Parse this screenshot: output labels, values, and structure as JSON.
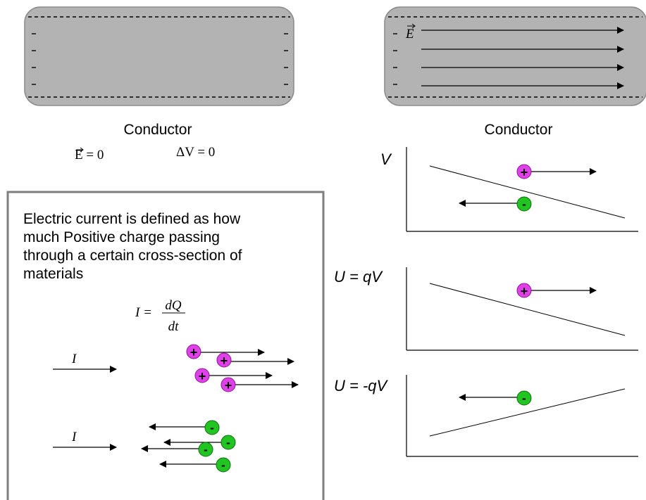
{
  "left_conductor": {
    "label": "Conductor",
    "field_eq": "E = 0",
    "potential_eq": "ΔV = 0"
  },
  "right_conductor": {
    "label": "Conductor",
    "field_label": "E"
  },
  "current_box": {
    "text_lines": [
      "Electric current is defined as how",
      "much Positive charge passing",
      "through a certain cross-section of",
      "materials"
    ],
    "formula_lhs": "I =",
    "formula_num": "dQ",
    "formula_den": "dt",
    "current_label_top": "I",
    "current_label_bottom": "I"
  },
  "graphs": {
    "v_label": "V",
    "u_pos_label": "U = qV",
    "u_neg_label": "U = -qV"
  },
  "charges": {
    "positive": "+",
    "negative": "-"
  },
  "colors": {
    "conductor_fill": "#b3b3b3",
    "positive_charge": "#e040e8",
    "negative_charge": "#22c422",
    "box_border": "#7f7f7f"
  }
}
